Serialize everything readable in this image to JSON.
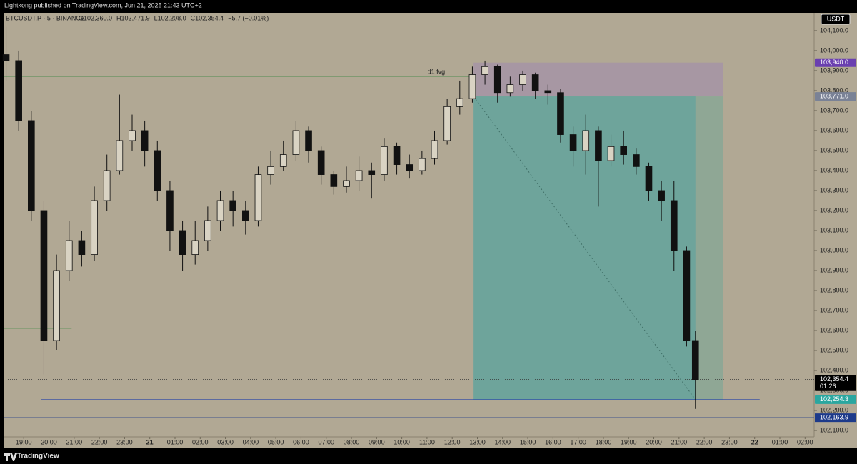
{
  "header": "Lightkong published on TradingView.com, Jun 21, 2025 21:43 UTC+2",
  "footer": "TradingView",
  "chart_data": {
    "type": "candlestick",
    "legend": {
      "symbol": "BTCUSDT.P · 5 · BINANCE",
      "ohlc": [
        "O102,360.0",
        "H102,471.9",
        "L102,208.0",
        "C102,354.4",
        "−5.7 (−0.01%)"
      ]
    },
    "currency": "USDT",
    "up_color": "#d9d3c3",
    "down_color": "#111111",
    "background": "#b1a894",
    "xlim": [
      0.2,
      32.36
    ],
    "ylim": [
      102068,
      104189
    ],
    "xticks": [
      {
        "value": 1,
        "label": "19:00"
      },
      {
        "value": 2,
        "label": "20:00"
      },
      {
        "value": 3,
        "label": "21:00"
      },
      {
        "value": 4,
        "label": "22:00"
      },
      {
        "value": 5,
        "label": "23:00"
      },
      {
        "value": 6,
        "label": "21"
      },
      {
        "value": 7,
        "label": "01:00"
      },
      {
        "value": 8,
        "label": "02:00"
      },
      {
        "value": 9,
        "label": "03:00"
      },
      {
        "value": 10,
        "label": "04:00"
      },
      {
        "value": 11,
        "label": "05:00"
      },
      {
        "value": 12,
        "label": "06:00"
      },
      {
        "value": 13,
        "label": "07:00"
      },
      {
        "value": 14,
        "label": "08:00"
      },
      {
        "value": 15,
        "label": "09:00"
      },
      {
        "value": 16,
        "label": "10:00"
      },
      {
        "value": 17,
        "label": "11:00"
      },
      {
        "value": 18,
        "label": "12:00"
      },
      {
        "value": 19,
        "label": "13:00"
      },
      {
        "value": 20,
        "label": "14:00"
      },
      {
        "value": 21,
        "label": "15:00"
      },
      {
        "value": 22,
        "label": "16:00"
      },
      {
        "value": 23,
        "label": "17:00"
      },
      {
        "value": 24,
        "label": "18:00"
      },
      {
        "value": 25,
        "label": "19:00"
      },
      {
        "value": 26,
        "label": "20:00"
      },
      {
        "value": 27,
        "label": "21:00"
      },
      {
        "value": 28,
        "label": "22:00"
      },
      {
        "value": 29,
        "label": "23:00"
      },
      {
        "value": 30,
        "label": "22"
      },
      {
        "value": 31,
        "label": "01:00"
      },
      {
        "value": 32,
        "label": "02:00"
      }
    ],
    "yticks": [
      {
        "value": 102100,
        "label": "102,100.0"
      },
      {
        "value": 102200,
        "label": "102,200.0"
      },
      {
        "value": 102300,
        "label": "102,300.0"
      },
      {
        "value": 102400,
        "label": "102,400.0"
      },
      {
        "value": 102500,
        "label": "102,500.0"
      },
      {
        "value": 102600,
        "label": "102,600.0"
      },
      {
        "value": 102700,
        "label": "102,700.0"
      },
      {
        "value": 102800,
        "label": "102,800.0"
      },
      {
        "value": 102900,
        "label": "102,900.0"
      },
      {
        "value": 103000,
        "label": "103,000.0"
      },
      {
        "value": 103100,
        "label": "103,100.0"
      },
      {
        "value": 103200,
        "label": "103,200.0"
      },
      {
        "value": 103300,
        "label": "103,300.0"
      },
      {
        "value": 103400,
        "label": "103,400.0"
      },
      {
        "value": 103500,
        "label": "103,500.0"
      },
      {
        "value": 103600,
        "label": "103,600.0"
      },
      {
        "value": 103700,
        "label": "103,700.0"
      },
      {
        "value": 103800,
        "label": "103,800.0"
      },
      {
        "value": 103900,
        "label": "103,900.0"
      },
      {
        "value": 104000,
        "label": "104,000.0"
      },
      {
        "value": 104100,
        "label": "104,100.0"
      }
    ],
    "x": [
      0.3,
      0.8,
      1.3,
      1.8,
      2.3,
      2.8,
      3.3,
      3.8,
      4.3,
      4.8,
      5.3,
      5.8,
      6.3,
      6.8,
      7.3,
      7.8,
      8.3,
      8.8,
      9.3,
      9.8,
      10.3,
      10.8,
      11.3,
      11.8,
      12.3,
      12.8,
      13.3,
      13.8,
      14.3,
      14.8,
      15.3,
      15.8,
      16.3,
      16.8,
      17.3,
      17.8,
      18.3,
      18.8,
      19.3,
      19.8,
      20.3,
      20.8,
      21.3,
      21.8,
      22.3,
      22.8,
      23.3,
      23.8,
      24.3,
      24.8,
      25.3,
      25.8,
      26.3,
      26.8,
      27.3,
      27.65
    ],
    "open": [
      103980,
      103950,
      103650,
      103200,
      102550,
      102900,
      103050,
      102980,
      103250,
      103400,
      103550,
      103600,
      103500,
      103300,
      103100,
      102980,
      103050,
      103150,
      103250,
      103200,
      103150,
      103380,
      103420,
      103480,
      103600,
      103500,
      103380,
      103320,
      103350,
      103400,
      103380,
      103520,
      103430,
      103400,
      103460,
      103550,
      103720,
      103760,
      103880,
      103920,
      103790,
      103830,
      103880,
      103800,
      103790,
      103580,
      103500,
      103600,
      103450,
      103520,
      103480,
      103420,
      103300,
      103250,
      103000,
      102550
    ],
    "high": [
      104120,
      104000,
      103700,
      103250,
      102980,
      103150,
      103100,
      103320,
      103480,
      103780,
      103680,
      103650,
      103550,
      103350,
      103150,
      103150,
      103220,
      103300,
      103300,
      103250,
      103420,
      103500,
      103550,
      103650,
      103620,
      103520,
      103400,
      103420,
      103470,
      103440,
      103560,
      103540,
      103480,
      103500,
      103600,
      103760,
      103850,
      103920,
      103950,
      103930,
      103870,
      103900,
      103890,
      103830,
      103810,
      103620,
      103680,
      103620,
      103580,
      103600,
      103510,
      103440,
      103350,
      103350,
      103020,
      102600
    ],
    "low": [
      103850,
      103600,
      103150,
      102380,
      102500,
      102850,
      102920,
      102950,
      103200,
      103380,
      103500,
      103420,
      103250,
      103000,
      102900,
      102930,
      103000,
      103100,
      103120,
      103080,
      103120,
      103330,
      103400,
      103450,
      103440,
      103330,
      103280,
      103290,
      103300,
      103260,
      103350,
      103380,
      103360,
      103380,
      103430,
      103530,
      103680,
      103740,
      103830,
      103740,
      103770,
      103800,
      103760,
      103730,
      103540,
      103420,
      103380,
      103220,
      103420,
      103430,
      103380,
      103250,
      103150,
      102900,
      102520,
      102208
    ],
    "close": [
      103950,
      103650,
      103200,
      102550,
      102900,
      103050,
      102980,
      103250,
      103400,
      103550,
      103600,
      103500,
      103300,
      103100,
      102980,
      103050,
      103150,
      103250,
      103200,
      103150,
      103380,
      103420,
      103480,
      103600,
      103500,
      103380,
      103320,
      103350,
      103400,
      103380,
      103520,
      103430,
      103400,
      103460,
      103550,
      103720,
      103760,
      103880,
      103920,
      103790,
      103830,
      103880,
      103800,
      103790,
      103580,
      103500,
      103600,
      103450,
      103520,
      103480,
      103420,
      103300,
      103250,
      103000,
      102550,
      102354.4
    ],
    "lines": [
      {
        "value": 103871,
        "x_from": 0.2,
        "x_to": 18.85,
        "color": "#4f8c4f",
        "text": "d1 fvg"
      },
      {
        "value": 102611,
        "x_from": 0.2,
        "x_to": 2.9,
        "color": "#4f8c4f"
      },
      {
        "value": 102254.3,
        "x_from": 1.7,
        "x_to": 30.2,
        "color": "#2945a8"
      },
      {
        "value": {
          "value": 102163.9,
          "label": "102,163.9"
        },
        "x_from": 0.2,
        "x_to": 32.36,
        "color": "#1d3a8a"
      }
    ],
    "position": {
      "x_start": 18.85,
      "x_now": 27.65,
      "x_end": 28.75,
      "stop": {
        "value": 103940,
        "label": "103,940.0"
      },
      "entry": {
        "value": 103771,
        "label": "103,771.0"
      },
      "target": {
        "value": 102254.3,
        "label": "102,254.3"
      },
      "stop_color": "#a797a3",
      "target_color": "#6ea49b",
      "target_done_color": "#8fa795"
    },
    "last_price": {
      "value": 102354.4,
      "label": "102,354.4"
    },
    "countdown": "01:26"
  }
}
